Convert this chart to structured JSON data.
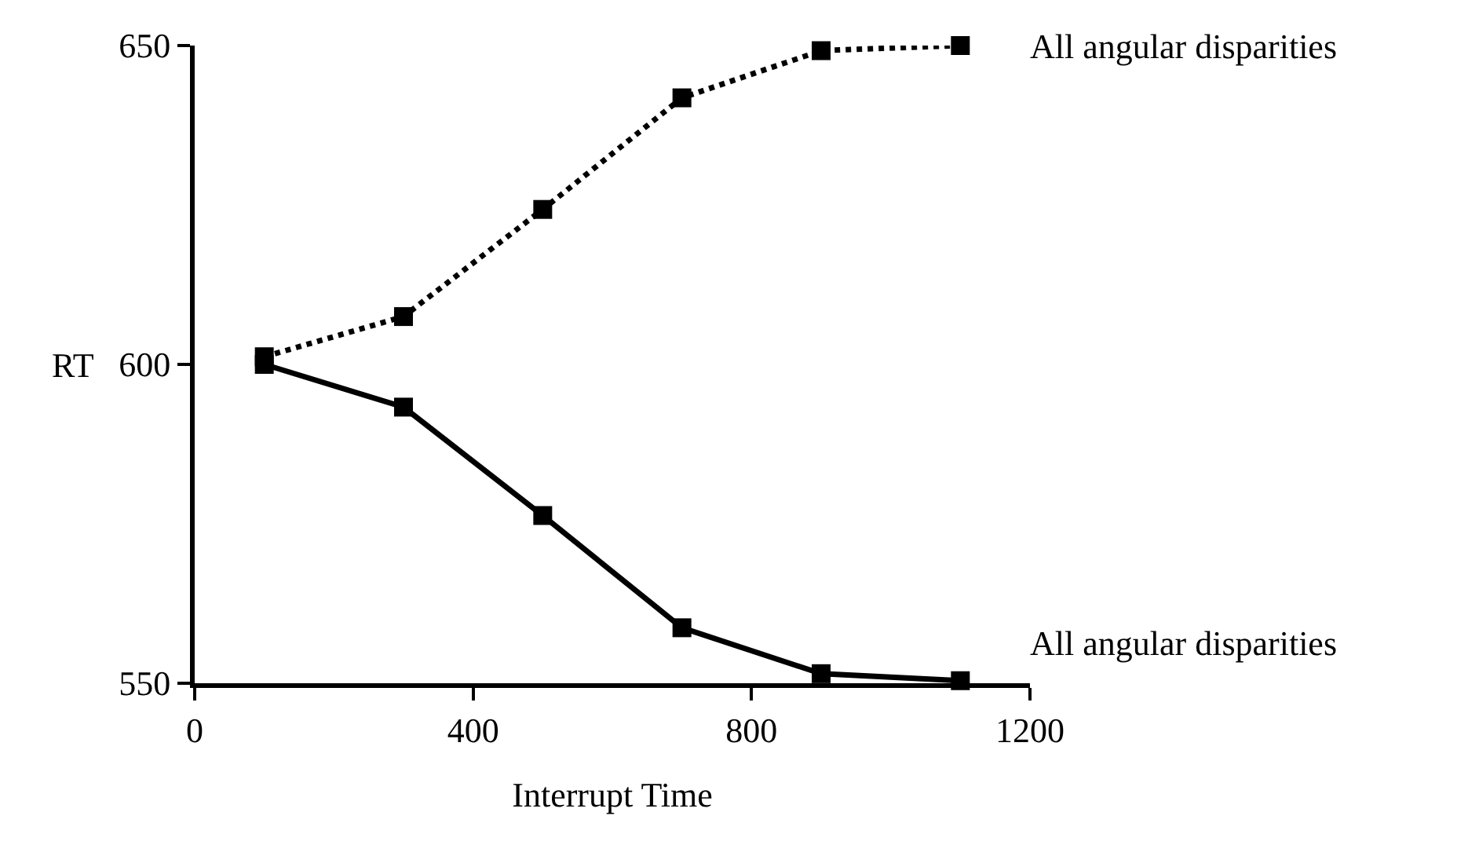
{
  "chart_data": {
    "type": "line",
    "xlabel": "Interrupt Time",
    "ylabel": "RT",
    "x": [
      100,
      300,
      500,
      700,
      900,
      1100
    ],
    "series": [
      {
        "name": "All angular disparities",
        "color": "#000000",
        "line_style": "dotted",
        "values": [
          601.2,
          607.5,
          624.3,
          641.8,
          649.2,
          650
        ]
      },
      {
        "name": "All angular disparities",
        "color": "#000000",
        "line_style": "solid",
        "values": [
          600,
          593.3,
          576.3,
          558.7,
          551.5,
          550.4
        ]
      }
    ],
    "xlim": [
      0,
      1200
    ],
    "xticks": [
      0,
      400,
      800,
      1200
    ],
    "ylim": [
      550,
      650
    ],
    "yticks": [
      550,
      600,
      650
    ],
    "marker": "square",
    "legend": false
  }
}
